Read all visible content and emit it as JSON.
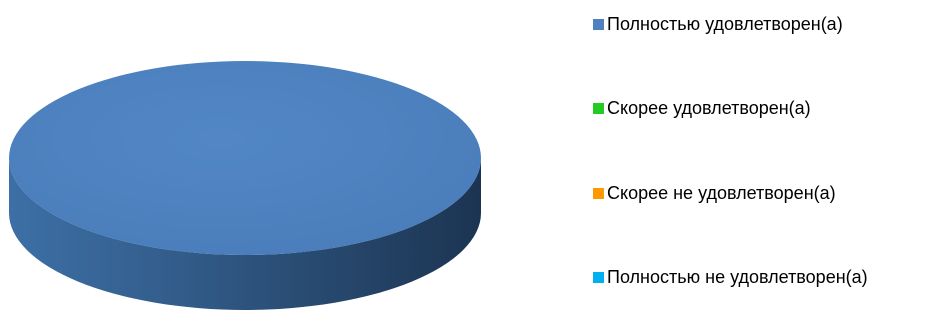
{
  "chart_data": {
    "type": "pie",
    "style": "3d",
    "title": "",
    "categories": [
      "Полностью удовлетворен(а)",
      "Скорее удовлетворен(а)",
      "Скорее не удовлетворен(а)",
      "Полностью не удовлетворен(а)"
    ],
    "values": [
      100,
      0,
      0,
      0
    ],
    "colors": [
      "#4F81BD",
      "#22CC22",
      "#FF9900",
      "#00B0F0"
    ],
    "legend_position": "right"
  }
}
